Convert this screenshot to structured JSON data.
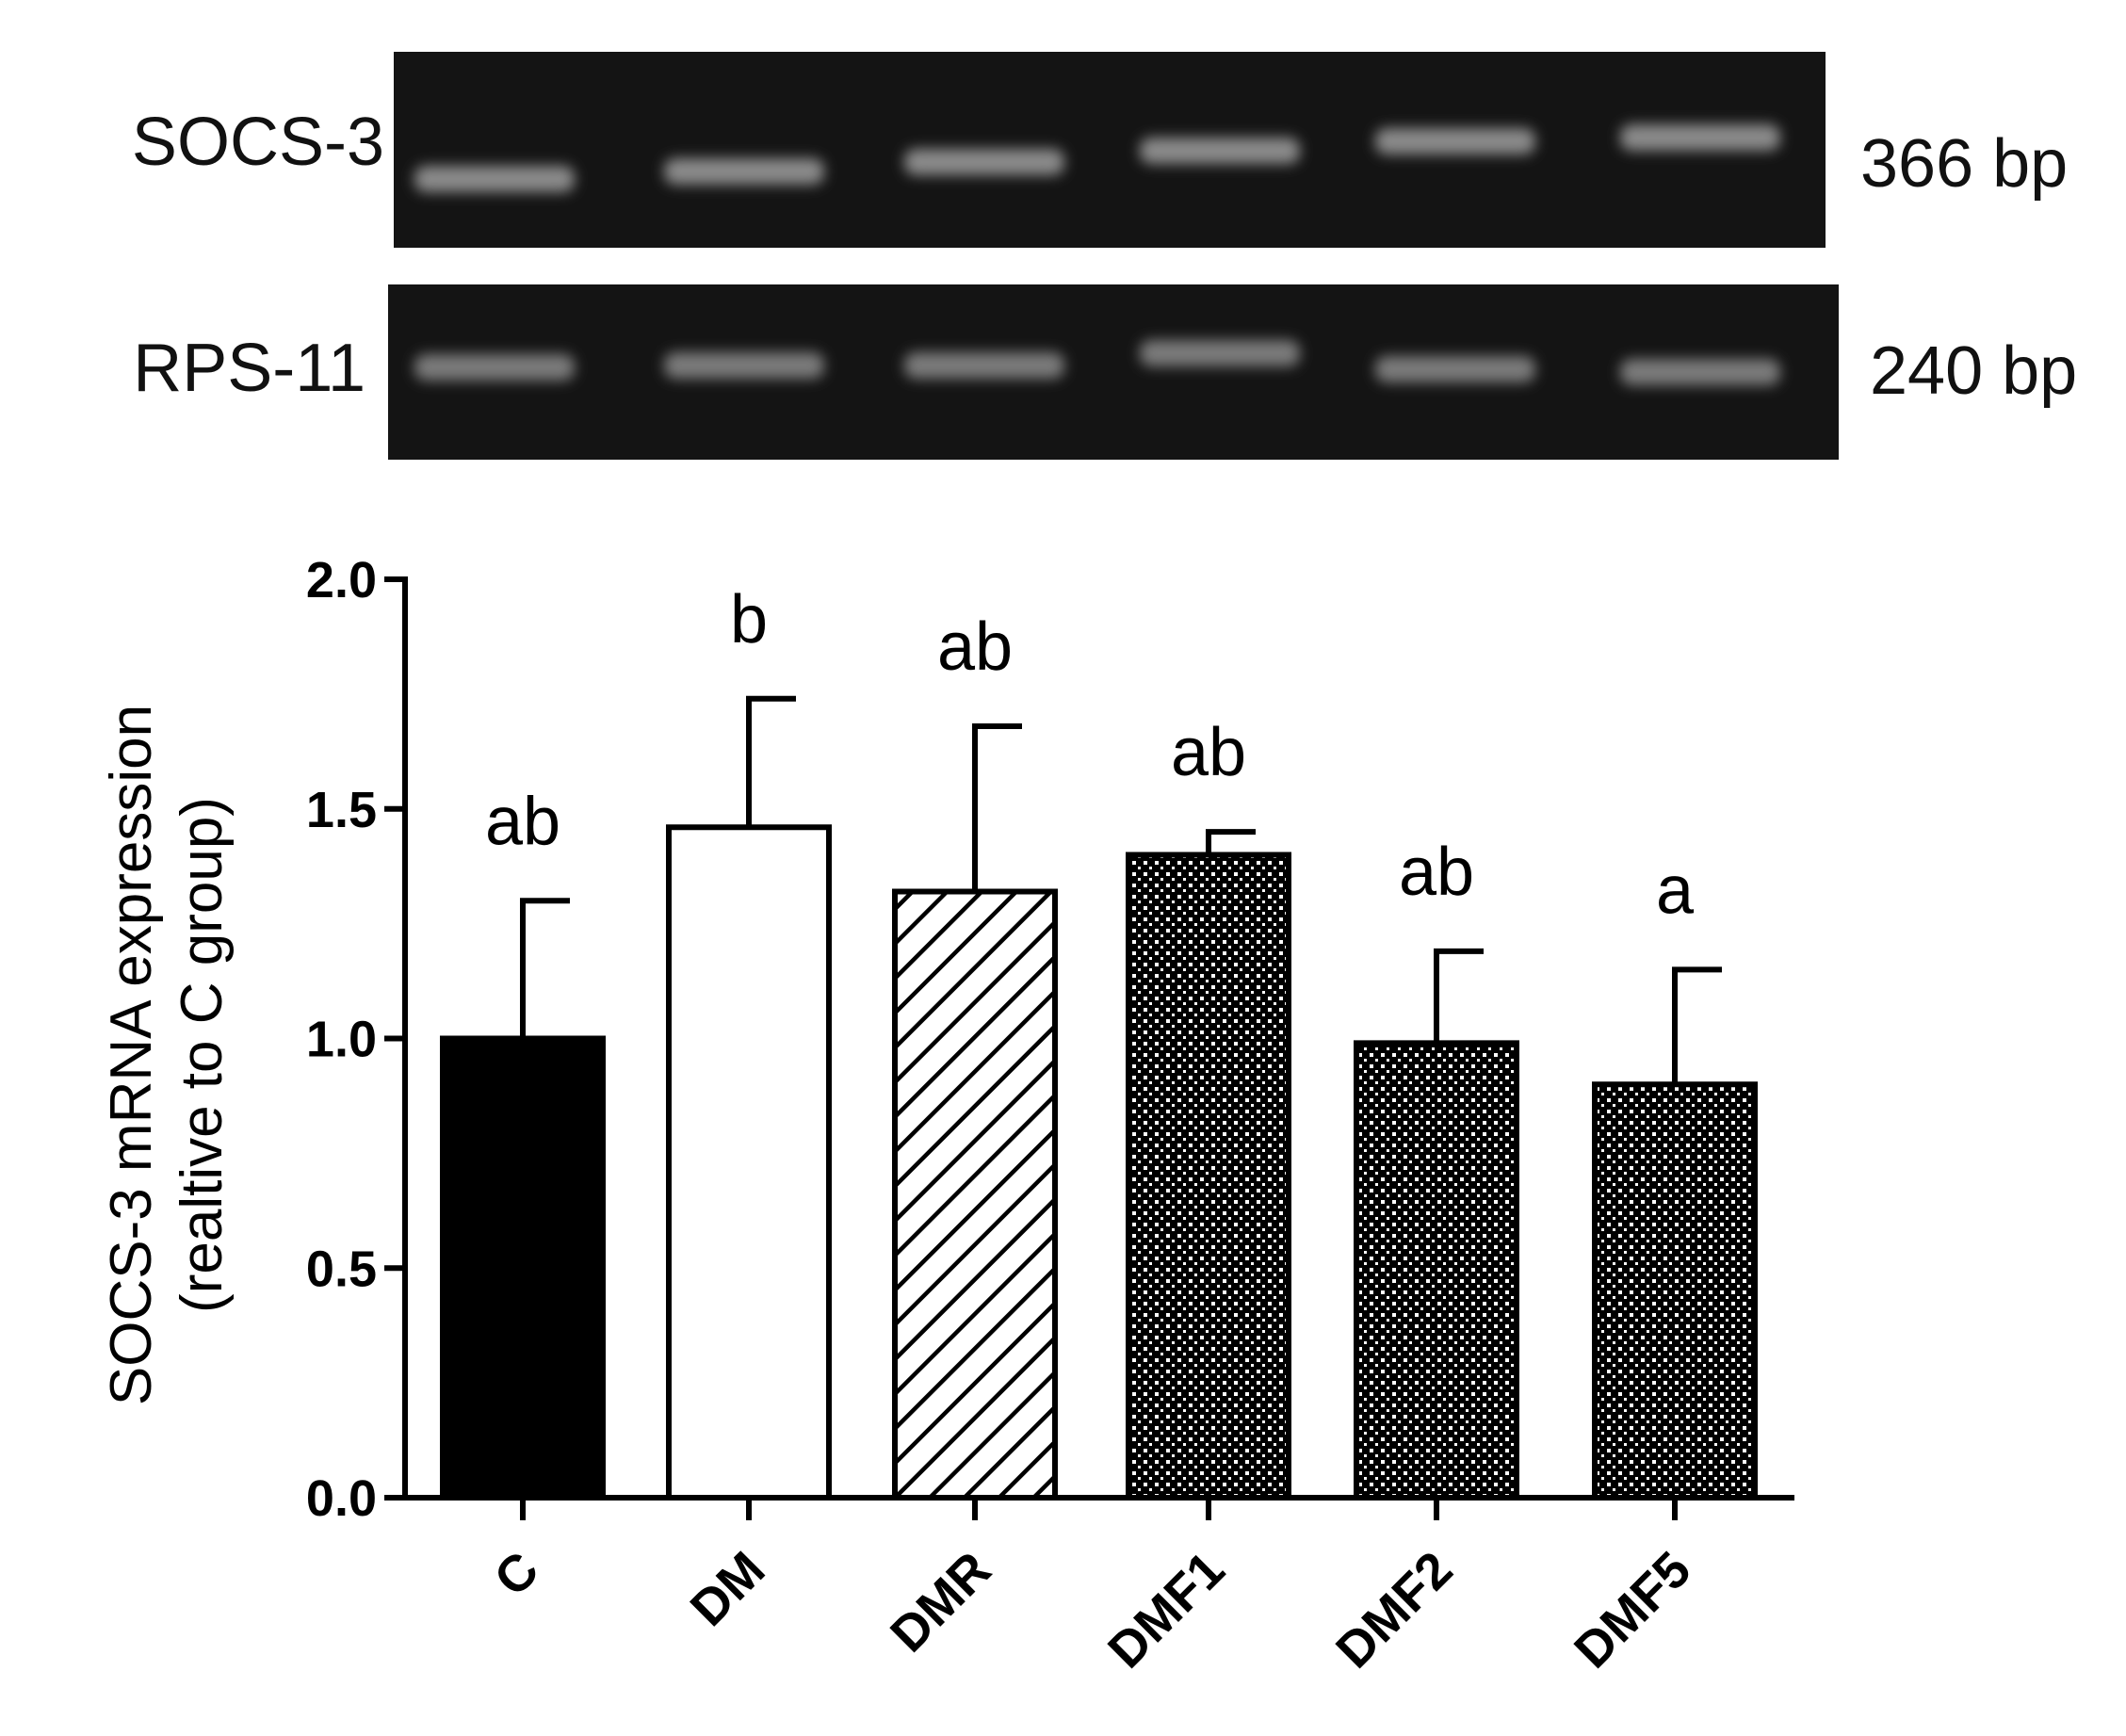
{
  "gel": {
    "rows": [
      {
        "label": "SOCS-3",
        "size": "366 bp",
        "bands": 6
      },
      {
        "label": "RPS-11",
        "size": "240 bp",
        "bands": 6
      }
    ]
  },
  "chart_data": {
    "type": "bar",
    "categories": [
      "C",
      "DM",
      "DMR",
      "DMF1",
      "DMF2",
      "DMF5"
    ],
    "values": [
      1.0,
      1.46,
      1.32,
      1.4,
      0.99,
      0.9
    ],
    "errors": [
      0.3,
      0.28,
      0.36,
      0.05,
      0.2,
      0.25
    ],
    "significance": [
      "ab",
      "b",
      "ab",
      "ab",
      "ab",
      "a"
    ],
    "fills": [
      "solid-black",
      "white",
      "diagonal-hatch",
      "dotted",
      "dotted",
      "dotted"
    ],
    "title": "",
    "xlabel": "",
    "ylabel_line1": "SOCS-3 mRNA expression",
    "ylabel_line2": "(realtive to C group)",
    "ylim": [
      0,
      2.0
    ],
    "yticks": [
      "0.0",
      "0.5",
      "1.0",
      "1.5",
      "2.0"
    ],
    "ytick_values": [
      0,
      0.5,
      1.0,
      1.5,
      2.0
    ],
    "grid": false,
    "legend": "none"
  }
}
